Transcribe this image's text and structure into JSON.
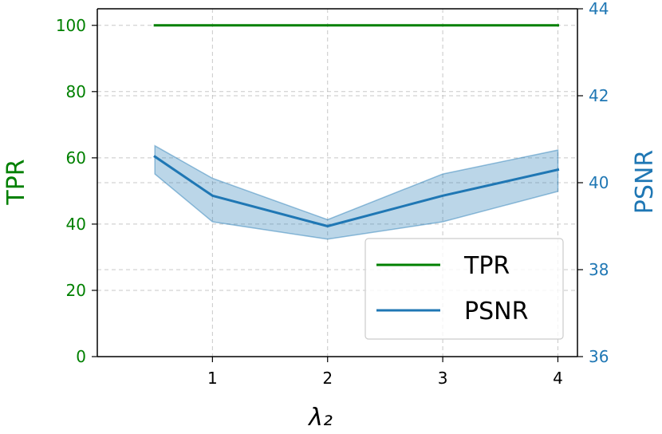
{
  "chart_data": {
    "type": "line",
    "x": [
      0.5,
      1,
      2,
      3,
      4
    ],
    "xticks": [
      1,
      2,
      3,
      4
    ],
    "xlim": [
      0.0,
      4.17
    ],
    "xlabel": "λ₂",
    "left_axis": {
      "label": "TPR",
      "ylim": [
        0,
        105
      ],
      "ticks": [
        0,
        20,
        40,
        60,
        80,
        100
      ],
      "color": "#008000"
    },
    "right_axis": {
      "label": "PSNR",
      "ylim": [
        36,
        44
      ],
      "ticks": [
        36,
        38,
        40,
        42,
        44
      ],
      "color": "#1f77b4"
    },
    "series": [
      {
        "name": "TPR",
        "axis": "left",
        "color": "#008000",
        "values": [
          100,
          100,
          100,
          100,
          100
        ]
      },
      {
        "name": "PSNR",
        "axis": "right",
        "color": "#1f77b4",
        "values": [
          40.6,
          39.7,
          39.0,
          39.7,
          40.3
        ],
        "band_lower": [
          40.2,
          39.1,
          38.7,
          39.1,
          39.8
        ],
        "band_upper": [
          40.85,
          40.1,
          39.15,
          40.2,
          40.75
        ]
      }
    ],
    "legend": {
      "position": "lower-right",
      "entries": [
        "TPR",
        "PSNR"
      ]
    },
    "grid": true
  }
}
